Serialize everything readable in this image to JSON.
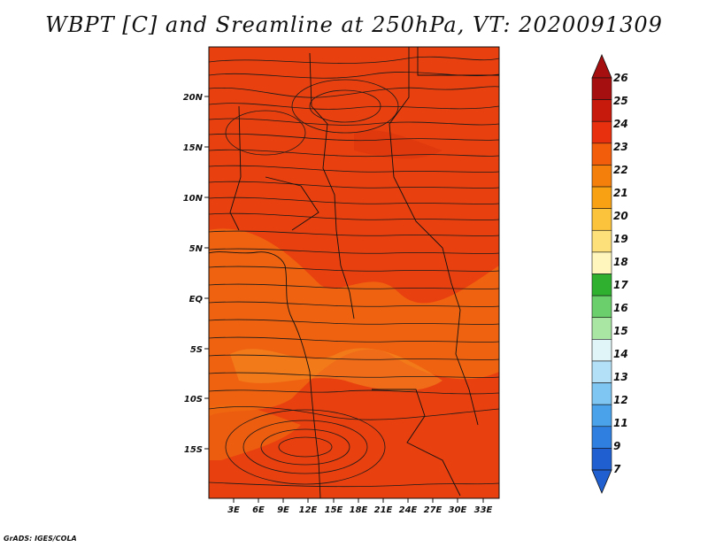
{
  "title": "WBPT [C] and Sreamline at 250hPa, VT: 2020091309",
  "credit": "GrADS: IGES/COLA",
  "lat_labels": [
    "20N",
    "15N",
    "10N",
    "5N",
    "EQ",
    "5S",
    "10S",
    "15S"
  ],
  "lon_labels": [
    "3E",
    "6E",
    "9E",
    "12E",
    "15E",
    "18E",
    "21E",
    "24E",
    "27E",
    "30E",
    "33E"
  ],
  "colorbar": {
    "labels": [
      "26",
      "25",
      "24",
      "23",
      "22",
      "21",
      "20",
      "19",
      "18",
      "17",
      "16",
      "15",
      "14",
      "13",
      "12",
      "11",
      "9",
      "7"
    ],
    "colors": [
      "#a50f0f",
      "#c81a0c",
      "#e8300e",
      "#f25d0c",
      "#f57f0b",
      "#f8a112",
      "#fbc23b",
      "#fde07a",
      "#fef6bc",
      "#2fb02f",
      "#6bd06b",
      "#a9e6a3",
      "#e0f5f8",
      "#b4e0f7",
      "#7fc6f2",
      "#4aa3ea",
      "#2f7fe0",
      "#1f5fd0"
    ]
  },
  "map": {
    "field_colors": {
      "dominant": "#e8400f",
      "medium": "#f06a10",
      "light": "#f58a20"
    }
  }
}
